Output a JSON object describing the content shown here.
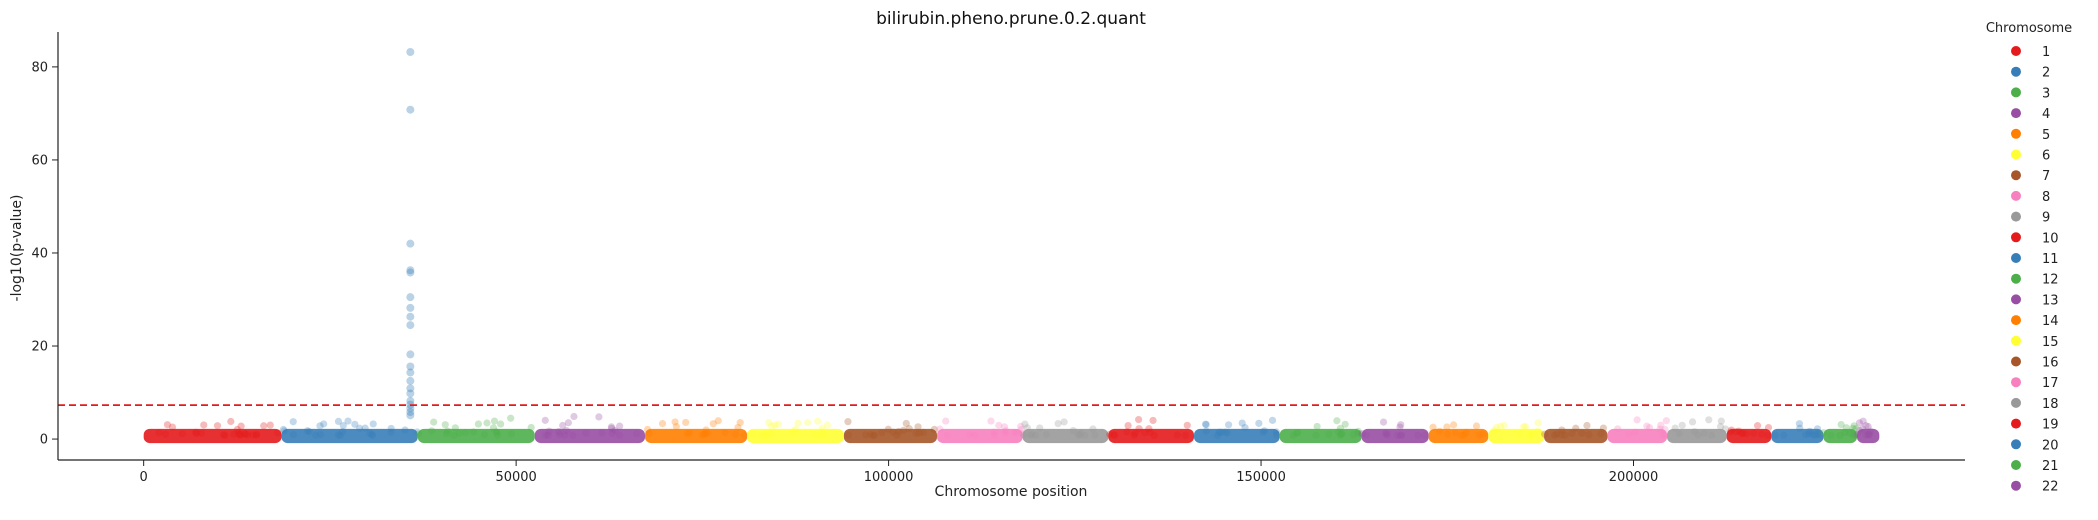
{
  "chart_data": {
    "type": "scatter",
    "title": "bilirubin.pheno.prune.0.2.quant",
    "xlabel": "Chromosome position",
    "ylabel": "-log10(p-value)",
    "xlim": [
      -11500,
      244500
    ],
    "ylim": [
      -4.5,
      87.5
    ],
    "xticks": [
      0,
      50000,
      100000,
      150000,
      200000
    ],
    "xtick_labels": [
      "0",
      "50000",
      "100000",
      "150000",
      "200000"
    ],
    "yticks": [
      0,
      20,
      40,
      60,
      80
    ],
    "ytick_labels": [
      "0",
      "20",
      "40",
      "60",
      "80"
    ],
    "threshold": {
      "y": 7.3,
      "color": "#e41a1c",
      "style": "dashed"
    },
    "grid": false,
    "legend": {
      "title": "Chromosome",
      "placement": "outside-right",
      "entries": [
        "1",
        "2",
        "3",
        "4",
        "5",
        "6",
        "7",
        "8",
        "9",
        "10",
        "11",
        "12",
        "13",
        "14",
        "15",
        "16",
        "17",
        "18",
        "19",
        "20",
        "21",
        "22"
      ]
    },
    "palette": [
      "#e41a1c",
      "#377eb8",
      "#4daf4a",
      "#984ea3",
      "#ff7f00",
      "#ffff33",
      "#a65628",
      "#f781bf",
      "#999999"
    ],
    "chromosomes": [
      {
        "name": "1",
        "start": 0,
        "end": 18500,
        "max": 3.8
      },
      {
        "name": "2",
        "start": 18500,
        "end": 36800,
        "max": 4.2
      },
      {
        "name": "3",
        "start": 36800,
        "end": 52500,
        "max": 4.5
      },
      {
        "name": "4",
        "start": 52500,
        "end": 67300,
        "max": 5.0
      },
      {
        "name": "5",
        "start": 67300,
        "end": 81000,
        "max": 4.0
      },
      {
        "name": "6",
        "start": 81000,
        "end": 94000,
        "max": 4.2
      },
      {
        "name": "7",
        "start": 94000,
        "end": 106500,
        "max": 3.8
      },
      {
        "name": "8",
        "start": 106500,
        "end": 118000,
        "max": 4.0
      },
      {
        "name": "9",
        "start": 118000,
        "end": 129500,
        "max": 4.3
      },
      {
        "name": "10",
        "start": 129500,
        "end": 141000,
        "max": 4.5
      },
      {
        "name": "11",
        "start": 141000,
        "end": 152500,
        "max": 4.3
      },
      {
        "name": "12",
        "start": 152500,
        "end": 163500,
        "max": 4.5
      },
      {
        "name": "13",
        "start": 163500,
        "end": 172500,
        "max": 3.8
      },
      {
        "name": "14",
        "start": 172500,
        "end": 180500,
        "max": 3.8
      },
      {
        "name": "15",
        "start": 180500,
        "end": 188000,
        "max": 3.5
      },
      {
        "name": "16",
        "start": 188000,
        "end": 196500,
        "max": 4.0
      },
      {
        "name": "17",
        "start": 196500,
        "end": 204500,
        "max": 4.2
      },
      {
        "name": "18",
        "start": 204500,
        "end": 212500,
        "max": 4.5
      },
      {
        "name": "19",
        "start": 212500,
        "end": 218500,
        "max": 3.8
      },
      {
        "name": "20",
        "start": 218500,
        "end": 225500,
        "max": 3.5
      },
      {
        "name": "21",
        "start": 225500,
        "end": 230000,
        "max": 3.8
      },
      {
        "name": "22",
        "start": 230000,
        "end": 233000,
        "max": 5.2
      }
    ],
    "significant_points": [
      {
        "chr": "2",
        "x": 35800,
        "y": 83.2
      },
      {
        "chr": "2",
        "x": 35800,
        "y": 70.8
      },
      {
        "chr": "2",
        "x": 35800,
        "y": 42.0
      },
      {
        "chr": "2",
        "x": 35800,
        "y": 36.3
      },
      {
        "chr": "2",
        "x": 35800,
        "y": 35.8
      },
      {
        "chr": "2",
        "x": 35800,
        "y": 30.5
      },
      {
        "chr": "2",
        "x": 35800,
        "y": 28.2
      },
      {
        "chr": "2",
        "x": 35800,
        "y": 26.3
      },
      {
        "chr": "2",
        "x": 35800,
        "y": 24.5
      },
      {
        "chr": "2",
        "x": 35800,
        "y": 18.2
      },
      {
        "chr": "2",
        "x": 35800,
        "y": 15.6
      },
      {
        "chr": "2",
        "x": 35800,
        "y": 14.3
      },
      {
        "chr": "2",
        "x": 35800,
        "y": 12.5
      },
      {
        "chr": "2",
        "x": 35800,
        "y": 10.9
      },
      {
        "chr": "2",
        "x": 35800,
        "y": 9.8
      },
      {
        "chr": "2",
        "x": 35800,
        "y": 8.2
      },
      {
        "chr": "2",
        "x": 35800,
        "y": 7.4
      },
      {
        "chr": "2",
        "x": 35800,
        "y": 6.6
      },
      {
        "chr": "2",
        "x": 35800,
        "y": 5.8
      },
      {
        "chr": "2",
        "x": 35800,
        "y": 5.1
      }
    ]
  }
}
